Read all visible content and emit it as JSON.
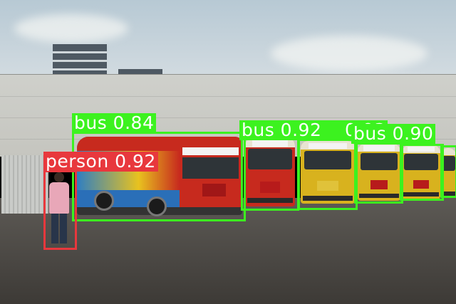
{
  "detections": [
    {
      "label": "bus 0.84",
      "class_name": "bus",
      "confidence": 0.84,
      "color": "#3cf21f"
    },
    {
      "label": "bus 0.92",
      "class_name": "bus",
      "confidence": 0.92,
      "color": "#3cf21f"
    },
    {
      "label": "bus 0.90",
      "class_name": "bus",
      "confidence": 0.9,
      "color": "#3cf21f"
    },
    {
      "label": "person 0.92",
      "class_name": "person",
      "confidence": 0.92,
      "color": "#e8383d"
    }
  ],
  "colors": {
    "bus": "#3cf21f",
    "person": "#e8383d",
    "bus_body": "#d8b21e",
    "bus_front": "#c72a1e"
  }
}
